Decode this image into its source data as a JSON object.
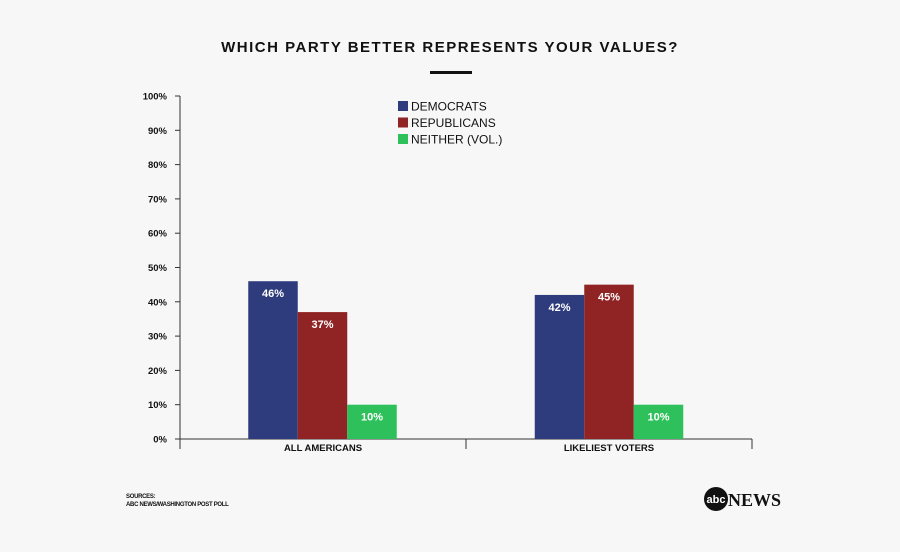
{
  "chart_data": {
    "type": "bar",
    "title": "WHICH PARTY BETTER REPRESENTS YOUR VALUES?",
    "categories": [
      "ALL AMERICANS",
      "LIKELIEST VOTERS"
    ],
    "series": [
      {
        "name": "DEMOCRATS",
        "values": [
          46,
          42
        ],
        "labels": [
          "46%",
          "42%"
        ],
        "color": "#2e3b7d"
      },
      {
        "name": "REPUBLICANS",
        "values": [
          37,
          45
        ],
        "labels": [
          "37%",
          "45%"
        ],
        "color": "#902323"
      },
      {
        "name": "NEITHER (VOL.)",
        "values": [
          10,
          10
        ],
        "labels": [
          "10%",
          "10%"
        ],
        "color": "#2ec05a"
      }
    ],
    "ylim": [
      0,
      100
    ],
    "yticks": [
      "0%",
      "10%",
      "20%",
      "30%",
      "40%",
      "50%",
      "60%",
      "70%",
      "80%",
      "90%",
      "100%"
    ],
    "grid": false,
    "legend": "top-center"
  },
  "footer": {
    "sources_label": "SOURCES:",
    "sources_text": "ABC NEWS/WASHINGTON POST  POLL",
    "logo": "abcNEWS"
  }
}
